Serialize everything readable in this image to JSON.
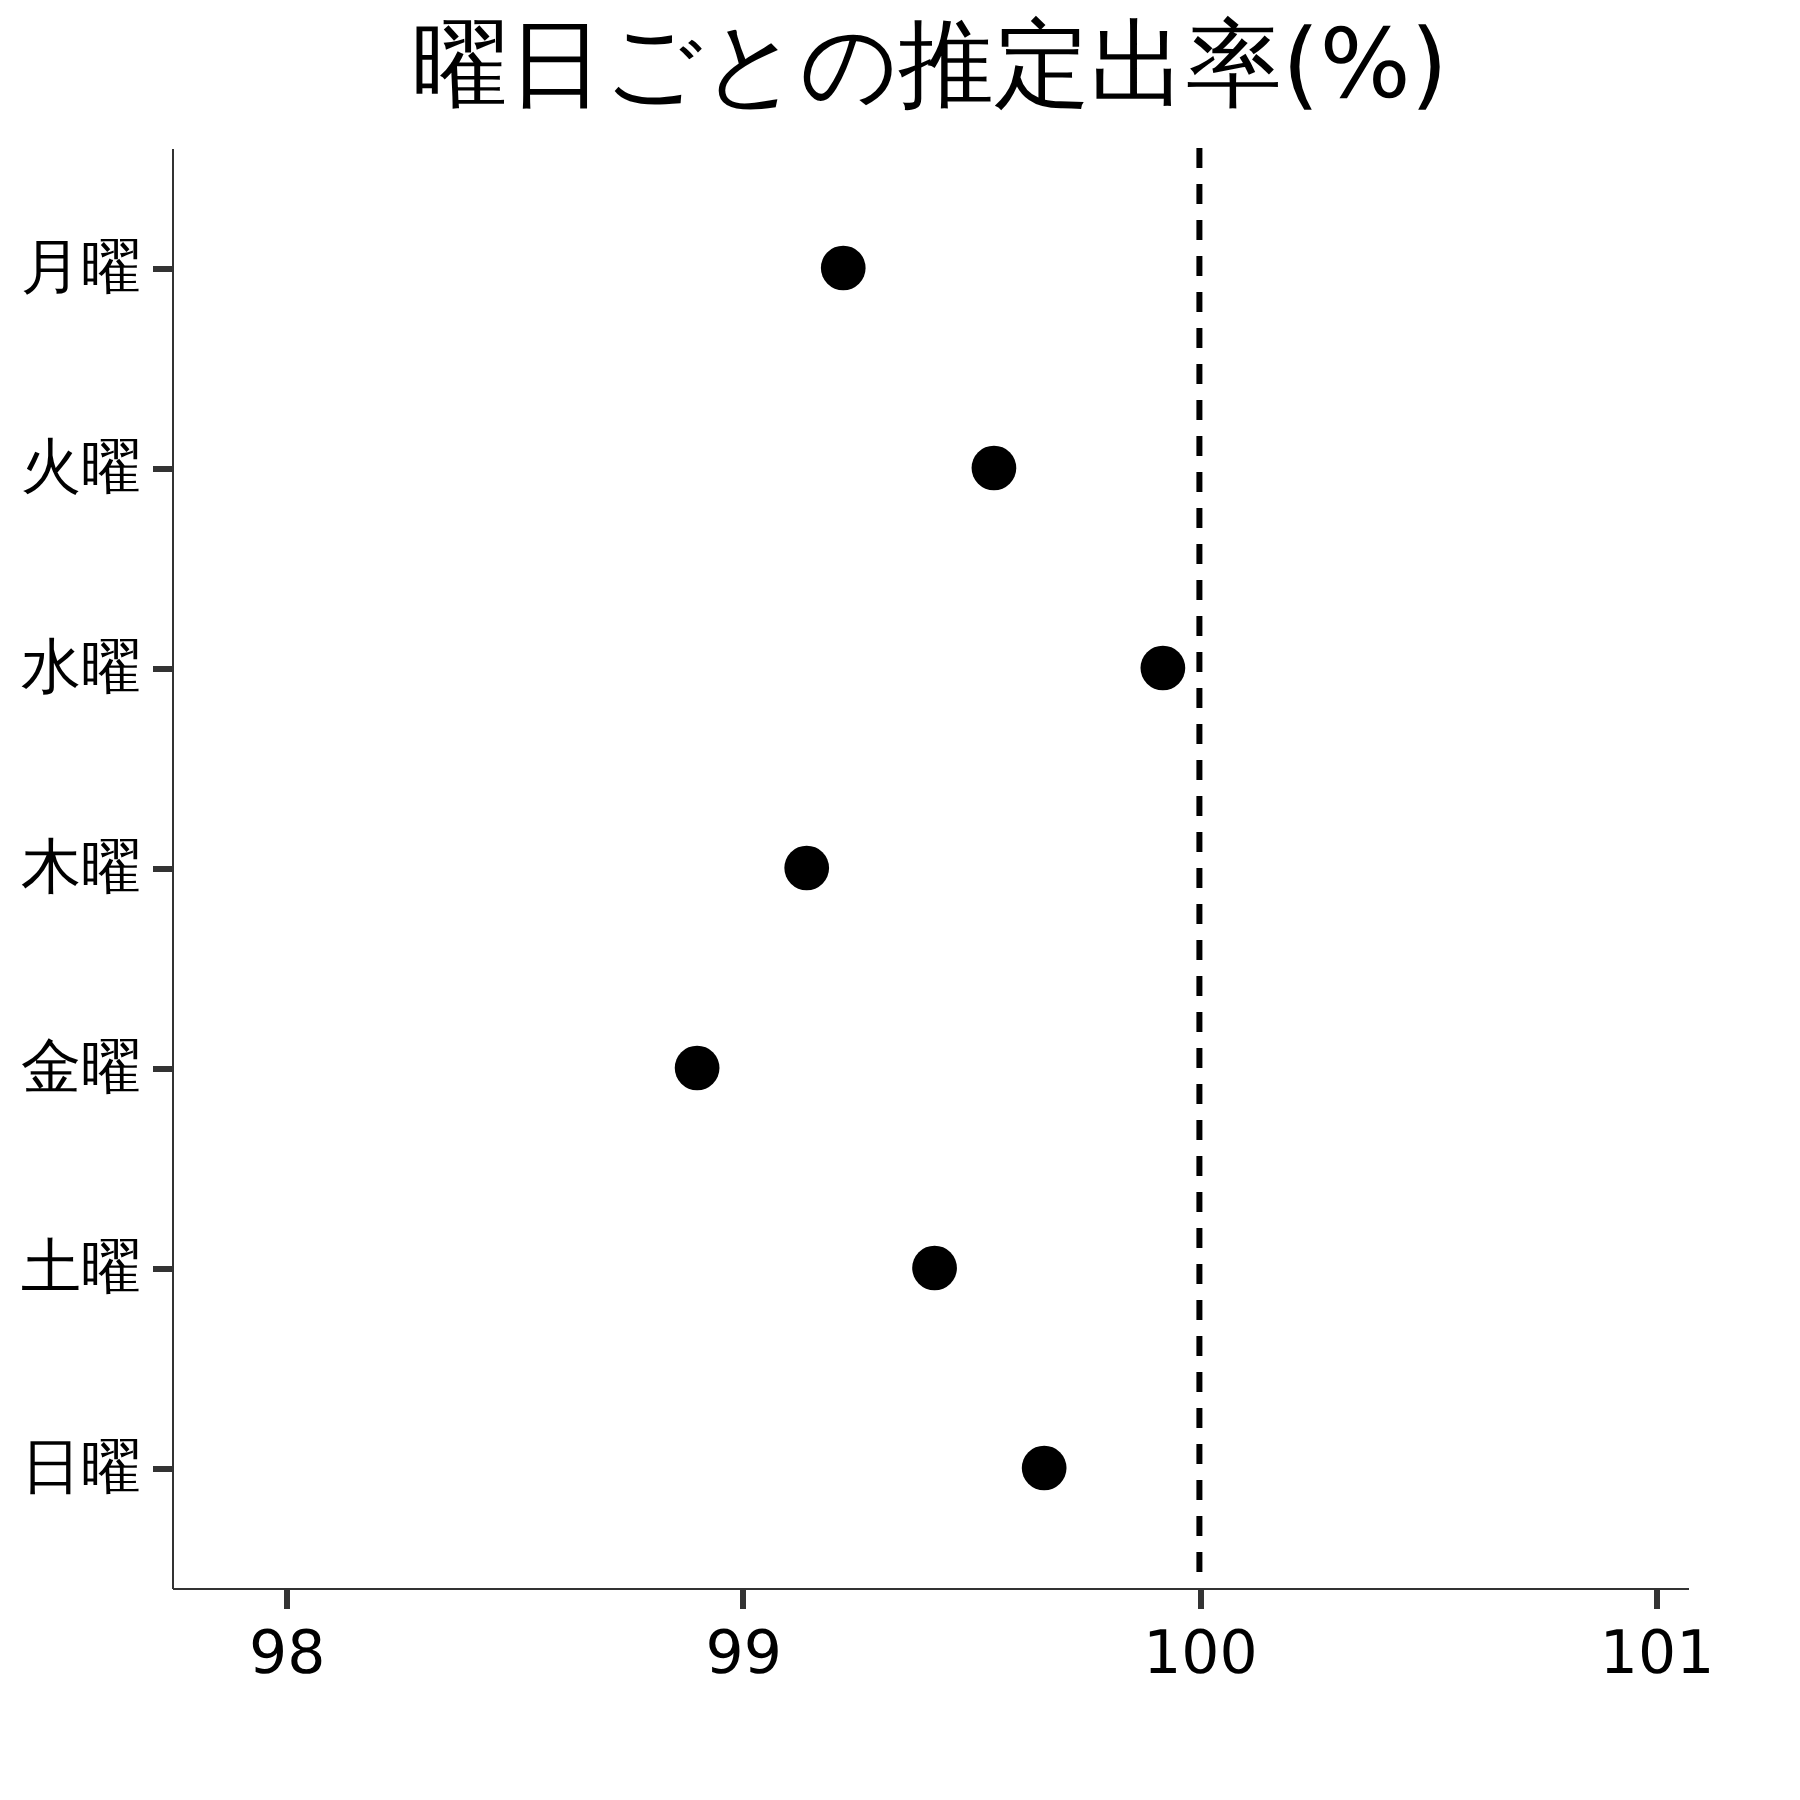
{
  "chart_data": {
    "type": "scatter",
    "title": "曜日ごとの推定出率(%)",
    "orientation": "horizontal",
    "categories": [
      "月曜",
      "火曜",
      "水曜",
      "木曜",
      "金曜",
      "土曜",
      "日曜"
    ],
    "series": [
      {
        "color": "#000000",
        "values": [
          99.22,
          99.55,
          99.92,
          99.14,
          98.9,
          99.42,
          99.66
        ]
      }
    ],
    "xlim": [
      97.75,
      101.07
    ],
    "xticks": [
      98,
      99,
      100,
      101
    ],
    "ref_lines": [
      {
        "axis": "x",
        "value": 100,
        "color": "#000000",
        "line_style": "dashed"
      }
    ],
    "grid": false,
    "marker": "circle"
  }
}
